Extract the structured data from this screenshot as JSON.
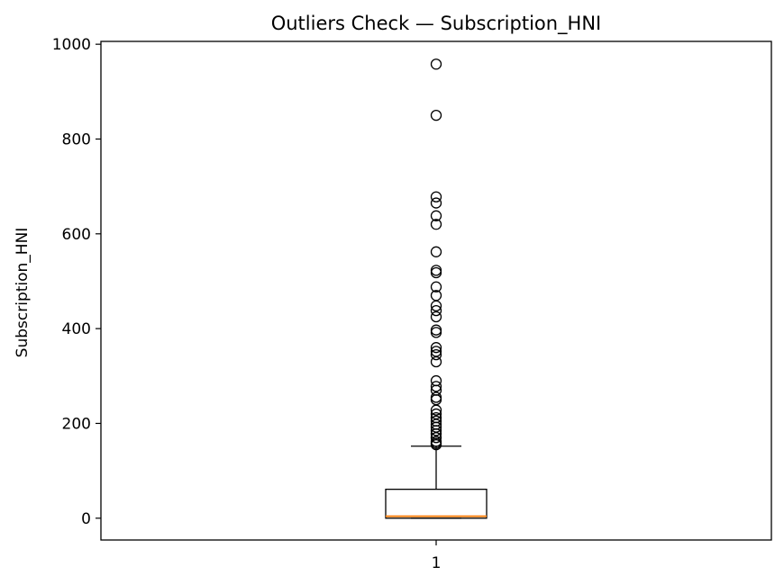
{
  "chart_data": {
    "type": "box",
    "title": "Outliers Check — Subscription_HNI",
    "xlabel": "",
    "ylabel": "Subscription_HNI",
    "x_tick_labels": [
      "1"
    ],
    "y_ticks": [
      0,
      200,
      400,
      600,
      800,
      1000
    ],
    "ylim": [
      -46,
      1006
    ],
    "grid": false,
    "box": {
      "category": "1",
      "whisker_low": 0,
      "q1": 0,
      "median": 4,
      "q3": 61,
      "whisker_high": 152
    },
    "outliers": [
      155,
      158,
      162,
      170,
      178,
      185,
      192,
      198,
      205,
      212,
      220,
      228,
      250,
      255,
      270,
      278,
      290,
      330,
      345,
      352,
      360,
      392,
      397,
      425,
      438,
      448,
      470,
      488,
      518,
      523,
      562,
      620,
      638,
      665,
      678,
      850,
      958
    ],
    "colors": {
      "box": "#000000",
      "median": "#ff7f0e",
      "outlier_edge": "#000000"
    }
  }
}
